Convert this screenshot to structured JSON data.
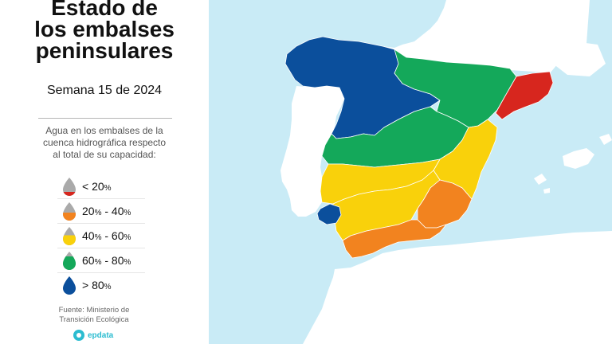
{
  "title_lines": [
    "Estado de",
    "los embalses",
    "peninsulares"
  ],
  "subtitle": "Semana 15 de 2024",
  "description_lines": [
    "Agua en los embalses de la",
    "cuenca hidrográfica respecto",
    "al total de su capacidad:"
  ],
  "legend": [
    {
      "label": "< 20%",
      "color": "#d7261e"
    },
    {
      "label": "20% - 40%",
      "color": "#f2831f"
    },
    {
      "label": "40% - 60%",
      "color": "#f9d10b"
    },
    {
      "label": "60% - 80%",
      "color": "#14a85a"
    },
    {
      "label": "> 80%",
      "color": "#0b4f9c"
    }
  ],
  "source_lines": [
    "Fuente: Ministerio de",
    "Transición Ecológica"
  ],
  "brand": "epdata",
  "colors": {
    "sea": "#c9ebf6",
    "land": "#ffffff",
    "drop_grey": "#aaaaaa",
    "divider": "#b5b5b5"
  },
  "map": {
    "basins": [
      {
        "name": "Cantábrico y Miño-Sil",
        "level": "> 80%",
        "color": "#0b4f9c"
      },
      {
        "name": "Duero",
        "level": "> 80%",
        "color": "#0b4f9c"
      },
      {
        "name": "Ebro",
        "level": "60% - 80%",
        "color": "#14a85a"
      },
      {
        "name": "Tajo",
        "level": "60% - 80%",
        "color": "#14a85a"
      },
      {
        "name": "Cuencas internas de Cataluña",
        "level": "< 20%",
        "color": "#d7261e"
      },
      {
        "name": "Guadiana",
        "level": "40% - 60%",
        "color": "#f9d10b"
      },
      {
        "name": "Júcar",
        "level": "40% - 60%",
        "color": "#f9d10b"
      },
      {
        "name": "Guadalquivir",
        "level": "40% - 60%",
        "color": "#f9d10b"
      },
      {
        "name": "Segura",
        "level": "20% - 40%",
        "color": "#f2831f"
      },
      {
        "name": "Cuencas mediterráneas andaluzas",
        "level": "20% - 40%",
        "color": "#f2831f"
      },
      {
        "name": "Tinto, Odiel y Piedras",
        "level": "> 80%",
        "color": "#0b4f9c"
      }
    ]
  }
}
